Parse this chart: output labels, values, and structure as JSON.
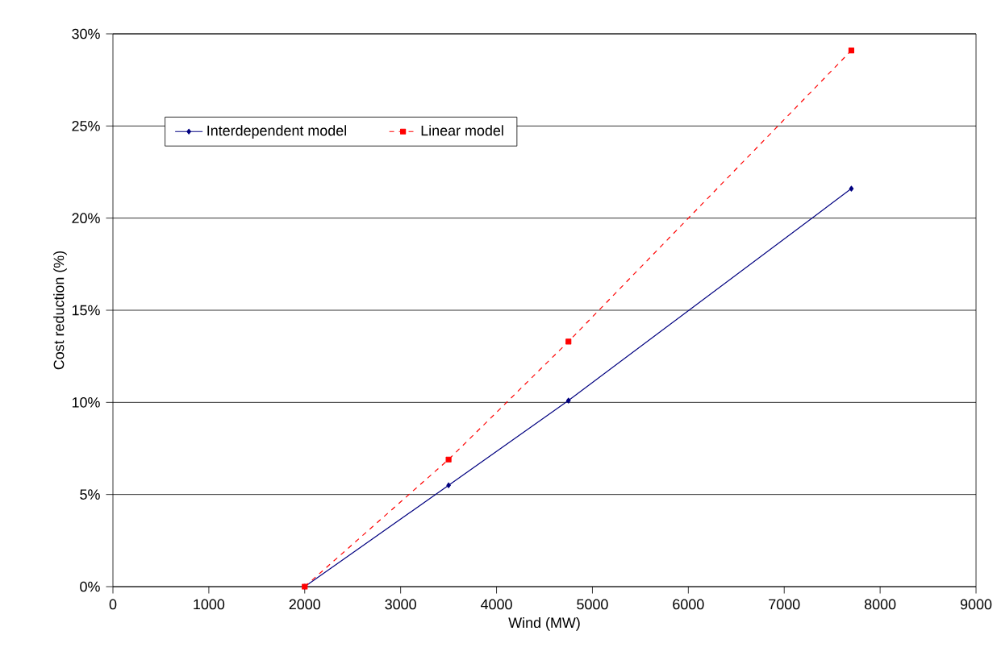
{
  "chart_data": {
    "type": "line",
    "xlabel": "Wind (MW)",
    "ylabel": "Cost reduction (%)",
    "xlim": [
      0,
      9000
    ],
    "xticks": [
      0,
      1000,
      2000,
      3000,
      4000,
      5000,
      6000,
      7000,
      8000,
      9000
    ],
    "ylim": [
      0,
      30
    ],
    "yticks": [
      {
        "value": 0,
        "label": "0%"
      },
      {
        "value": 5,
        "label": "5%"
      },
      {
        "value": 10,
        "label": "10%"
      },
      {
        "value": 15,
        "label": "15%"
      },
      {
        "value": 20,
        "label": "20%"
      },
      {
        "value": 25,
        "label": "25%"
      },
      {
        "value": 30,
        "label": "30%"
      }
    ],
    "grid": "y",
    "legend": "top left",
    "series": [
      {
        "name": "Interdependent model",
        "color": "#000080",
        "x": [
          2000,
          3500,
          4750,
          7700
        ],
        "values": [
          0,
          5.5,
          10.1,
          21.6
        ],
        "marker": "diamond",
        "line_style": "solid"
      },
      {
        "name": "Linear model",
        "color": "#ff0000",
        "x": [
          2000,
          3500,
          4750,
          7700
        ],
        "values": [
          0,
          6.9,
          13.3,
          29.1
        ],
        "marker": "square",
        "line_style": "dashed"
      }
    ]
  }
}
